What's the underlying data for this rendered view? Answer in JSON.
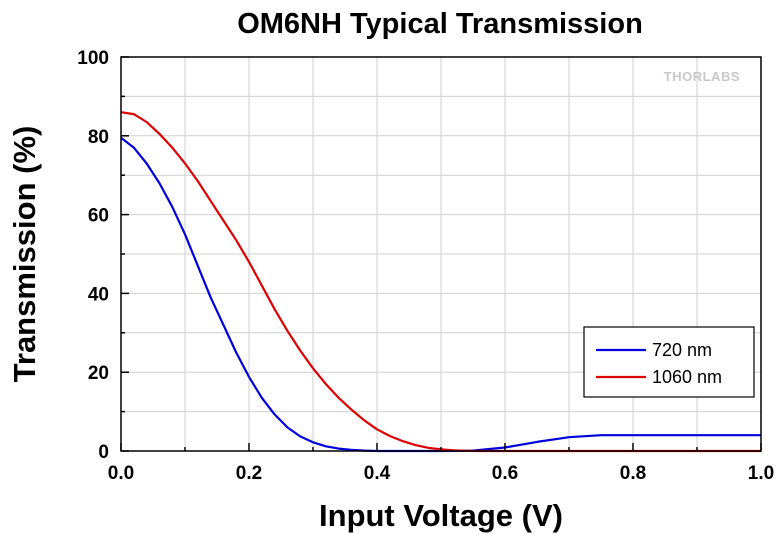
{
  "chart_data": {
    "type": "line",
    "title": "OM6NH Typical Transmission",
    "xlabel": "Input Voltage (V)",
    "ylabel": "Transmission (%)",
    "xlim": [
      0.0,
      1.0
    ],
    "ylim": [
      0,
      100
    ],
    "x_ticks": [
      0.0,
      0.2,
      0.4,
      0.6,
      0.8,
      1.0
    ],
    "x_tick_labels": [
      "0.0",
      "0.2",
      "0.4",
      "0.6",
      "0.8",
      "1.0"
    ],
    "y_ticks": [
      0,
      20,
      40,
      60,
      80,
      100
    ],
    "y_tick_labels": [
      "0",
      "20",
      "40",
      "60",
      "80",
      "100"
    ],
    "grid": true,
    "legend_position": "lower-right",
    "watermark": "THORLABS",
    "series": [
      {
        "name": "720 nm",
        "color": "#0000dd",
        "x": [
          0.0,
          0.02,
          0.04,
          0.06,
          0.08,
          0.1,
          0.12,
          0.14,
          0.16,
          0.18,
          0.2,
          0.22,
          0.24,
          0.26,
          0.28,
          0.3,
          0.32,
          0.34,
          0.36,
          0.38,
          0.4,
          0.45,
          0.5,
          0.55,
          0.6,
          0.65,
          0.7,
          0.75,
          0.8,
          0.85,
          0.9,
          0.95,
          1.0
        ],
        "y": [
          79.5,
          77.0,
          73.0,
          68.0,
          62.0,
          55.0,
          47.0,
          39.0,
          32.0,
          25.0,
          18.8,
          13.5,
          9.3,
          6.0,
          3.7,
          2.2,
          1.2,
          0.6,
          0.3,
          0.1,
          0.0,
          0.0,
          0.0,
          0.1,
          0.9,
          2.3,
          3.5,
          4.0,
          4.0,
          4.0,
          4.0,
          4.0,
          4.0
        ]
      },
      {
        "name": "1060 nm",
        "color": "#dd0000",
        "x": [
          0.0,
          0.02,
          0.04,
          0.06,
          0.08,
          0.1,
          0.12,
          0.14,
          0.16,
          0.18,
          0.2,
          0.22,
          0.24,
          0.26,
          0.28,
          0.3,
          0.32,
          0.34,
          0.36,
          0.38,
          0.4,
          0.42,
          0.44,
          0.46,
          0.48,
          0.5,
          0.52,
          0.54,
          0.56,
          0.6,
          0.7,
          0.8,
          0.9,
          1.0
        ],
        "y": [
          86.0,
          85.5,
          83.5,
          80.5,
          77.0,
          73.0,
          68.5,
          63.5,
          58.5,
          53.5,
          48.0,
          42.0,
          36.0,
          30.5,
          25.5,
          21.0,
          17.0,
          13.5,
          10.5,
          7.8,
          5.5,
          3.8,
          2.5,
          1.5,
          0.8,
          0.4,
          0.15,
          0.05,
          0.0,
          0.0,
          0.0,
          0.0,
          0.0,
          0.0
        ]
      }
    ]
  }
}
